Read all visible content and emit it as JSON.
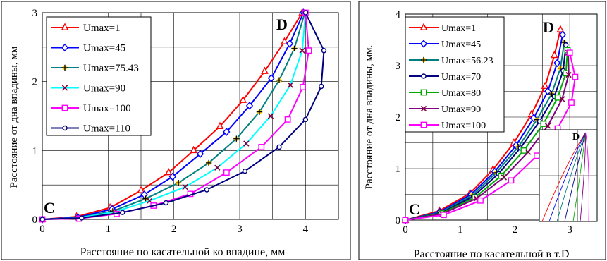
{
  "chart_data": [
    {
      "type": "line",
      "xlabel": "Расстояние по касательной ко впадине, мм",
      "ylabel": "Расстояние от дна впадины, мм",
      "xlim": [
        0,
        4.5
      ],
      "ylim": [
        0,
        3
      ],
      "xticks": [
        "0",
        "1",
        "2",
        "3",
        "4"
      ],
      "yticks": [
        "0",
        "1",
        "2",
        "3"
      ],
      "grid": true,
      "legend_position": "top-left",
      "annotations": [
        "C",
        "D"
      ],
      "colors": {
        "frame": "#000000",
        "grid": "#000000"
      },
      "series": [
        {
          "name": "Umax=1",
          "color": "#ff0000",
          "marker": "triangle",
          "x": [
            0,
            0.52,
            1.03,
            1.5,
            1.92,
            2.3,
            2.7,
            3.05,
            3.38,
            3.68,
            3.95
          ],
          "y": [
            0,
            0.04,
            0.17,
            0.42,
            0.68,
            1.0,
            1.35,
            1.73,
            2.15,
            2.58,
            3.0
          ]
        },
        {
          "name": "Umax=45",
          "color": "#0000ff",
          "marker": "diamond",
          "x": [
            0,
            0.54,
            1.06,
            1.55,
            1.98,
            2.4,
            2.8,
            3.15,
            3.48,
            3.76,
            3.97
          ],
          "y": [
            0,
            0.03,
            0.15,
            0.36,
            0.62,
            0.95,
            1.27,
            1.65,
            2.05,
            2.55,
            3.0
          ]
        },
        {
          "name": "Umax=75.43",
          "color": "#008080",
          "marker": "plus",
          "x": [
            0,
            0.54,
            1.07,
            1.57,
            2.07,
            2.53,
            2.95,
            3.3,
            3.6,
            3.83,
            3.99
          ],
          "y": [
            0,
            0.02,
            0.12,
            0.3,
            0.53,
            0.82,
            1.17,
            1.56,
            2.02,
            2.48,
            3.0
          ]
        },
        {
          "name": "Umax=90",
          "color": "#00ffff",
          "marker": "x",
          "x": [
            0,
            0.55,
            1.1,
            1.63,
            2.17,
            2.66,
            3.1,
            3.47,
            3.77,
            3.95,
            4.0
          ],
          "y": [
            0,
            0.02,
            0.11,
            0.27,
            0.47,
            0.75,
            1.1,
            1.5,
            1.95,
            2.45,
            3.0
          ]
        },
        {
          "name": "Umax=100",
          "color": "#ff00ff",
          "marker": "square",
          "x": [
            0,
            0.56,
            1.13,
            1.69,
            2.25,
            2.8,
            3.33,
            3.73,
            3.96,
            4.05,
            4.0
          ],
          "y": [
            0,
            0.01,
            0.08,
            0.2,
            0.37,
            0.68,
            1.05,
            1.45,
            1.92,
            2.45,
            3.0
          ]
        },
        {
          "name": "Umax=110",
          "color": "#000080",
          "marker": "circle",
          "x": [
            0,
            0.6,
            1.22,
            1.88,
            2.5,
            3.08,
            3.6,
            4.0,
            4.24,
            4.28,
            4.0
          ],
          "y": [
            0,
            0.02,
            0.1,
            0.24,
            0.43,
            0.7,
            1.05,
            1.45,
            1.93,
            2.45,
            3.0
          ]
        }
      ]
    },
    {
      "type": "line",
      "xlabel": "Расстояние по касательной в т.D",
      "ylabel": "Расстояние от дна впадины, мм.",
      "xlim": [
        0,
        3.5
      ],
      "ylim": [
        0,
        4
      ],
      "xticks": [
        "0",
        "1",
        "2",
        "3"
      ],
      "yticks": [
        "0",
        "1",
        "2",
        "3",
        "4"
      ],
      "grid": true,
      "legend_position": "top-left",
      "annotations": [
        "C",
        "D",
        "D"
      ],
      "inset": true,
      "series": [
        {
          "name": "Umax=1",
          "color": "#ff0000",
          "marker": "triangle",
          "x": [
            0,
            0.62,
            1.18,
            1.6,
            1.98,
            2.3,
            2.55,
            2.72,
            2.83
          ],
          "y": [
            0,
            0.18,
            0.52,
            0.98,
            1.5,
            2.05,
            2.6,
            3.2,
            3.7
          ]
        },
        {
          "name": "Umax=45",
          "color": "#0000ff",
          "marker": "diamond",
          "x": [
            0,
            0.63,
            1.2,
            1.63,
            2.02,
            2.34,
            2.6,
            2.77,
            2.87
          ],
          "y": [
            0,
            0.16,
            0.5,
            0.94,
            1.45,
            1.98,
            2.5,
            3.05,
            3.6
          ]
        },
        {
          "name": "Umax=56.23",
          "color": "#008080",
          "marker": "plus",
          "x": [
            0,
            0.64,
            1.22,
            1.66,
            2.06,
            2.4,
            2.67,
            2.83,
            2.9
          ],
          "y": [
            0,
            0.15,
            0.48,
            0.92,
            1.42,
            1.95,
            2.45,
            2.95,
            3.45
          ]
        },
        {
          "name": "Umax=70",
          "color": "#000080",
          "marker": "circle",
          "x": [
            0,
            0.65,
            1.24,
            1.7,
            2.1,
            2.45,
            2.72,
            2.88,
            2.93
          ],
          "y": [
            0,
            0.14,
            0.46,
            0.9,
            1.4,
            1.92,
            2.4,
            2.9,
            3.4
          ]
        },
        {
          "name": "Umax=80",
          "color": "#00aa00",
          "marker": "square",
          "x": [
            0,
            0.66,
            1.27,
            1.75,
            2.16,
            2.52,
            2.78,
            2.93,
            2.96
          ],
          "y": [
            0,
            0.13,
            0.44,
            0.86,
            1.35,
            1.87,
            2.38,
            2.85,
            3.3
          ]
        },
        {
          "name": "Umax=90",
          "color": "#800080",
          "marker": "x",
          "x": [
            0,
            0.67,
            1.3,
            1.8,
            2.24,
            2.6,
            2.86,
            2.98,
            2.97
          ],
          "y": [
            0,
            0.12,
            0.42,
            0.83,
            1.32,
            1.83,
            2.35,
            2.82,
            3.25
          ]
        },
        {
          "name": "Umax=100",
          "color": "#ff00ff",
          "marker": "square",
          "x": [
            0,
            0.7,
            1.37,
            1.93,
            2.4,
            2.78,
            3.03,
            3.1,
            3.0
          ],
          "y": [
            0,
            0.1,
            0.38,
            0.77,
            1.25,
            1.78,
            2.28,
            2.78,
            3.25
          ]
        }
      ]
    }
  ]
}
